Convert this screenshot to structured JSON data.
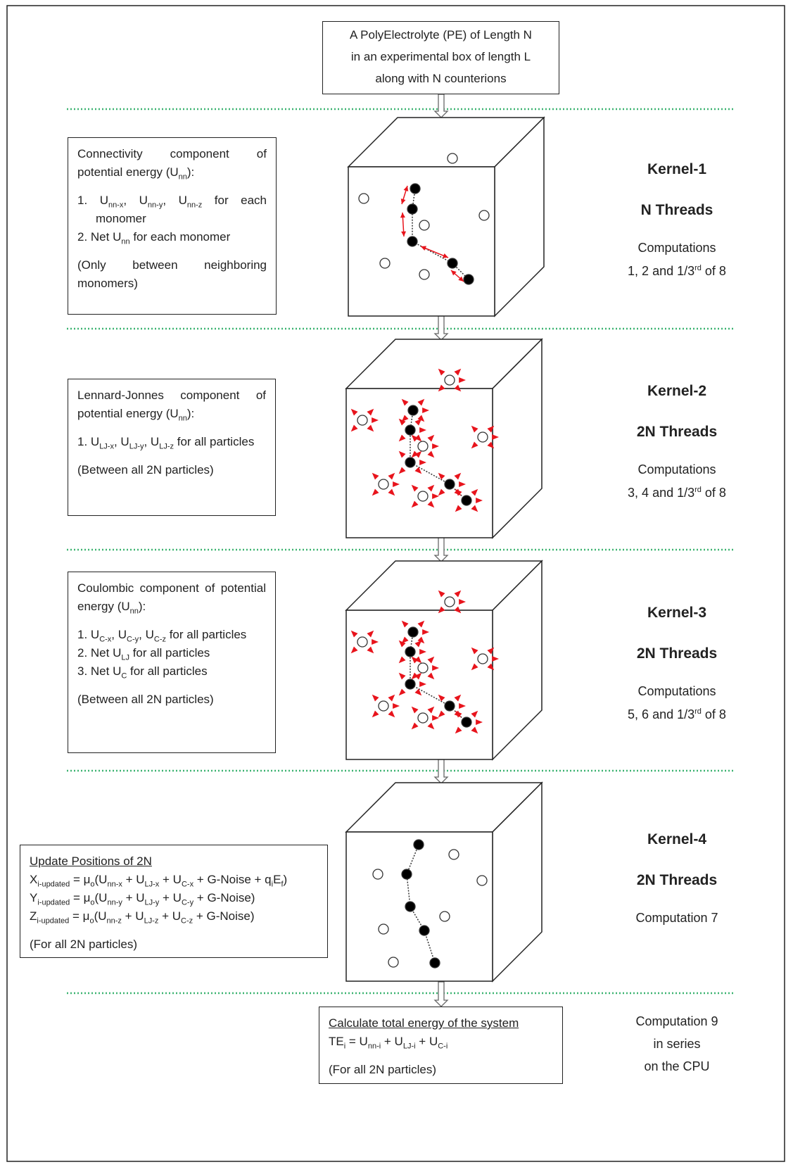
{
  "top_box": {
    "lines": [
      "A PolyElectrolyte (PE) of Length N",
      "in an experimental box of length L",
      "along with N counterions"
    ]
  },
  "kernels": [
    {
      "name": "Kernel-1",
      "threads": "N Threads",
      "computations": [
        [
          "Computations"
        ],
        [
          "1, 2 and 1/3",
          {
            "sup": "rd"
          },
          " of 8"
        ]
      ],
      "box": {
        "heading": [
          "Connectivity component of potential energy (U",
          {
            "sub": "nn"
          },
          "):"
        ],
        "list": [
          [
            "1. U",
            {
              "sub": "nn-x"
            },
            ", U",
            {
              "sub": "nn-y"
            },
            ", U",
            {
              "sub": "nn-z"
            },
            " for each monomer"
          ],
          [
            "2. Net U",
            {
              "sub": "nn"
            },
            " for each monomer"
          ]
        ],
        "note": [
          "(Only between neighboring monomers)"
        ]
      }
    },
    {
      "name": "Kernel-2",
      "threads": "2N Threads",
      "computations": [
        [
          "Computations"
        ],
        [
          "3, 4 and 1/3",
          {
            "sup": "rd"
          },
          " of 8"
        ]
      ],
      "box": {
        "heading": [
          "Lennard-Jonnes component of potential energy (U",
          {
            "sub": "nn"
          },
          "):"
        ],
        "list": [
          [
            "1. U",
            {
              "sub": "LJ-x"
            },
            ", U",
            {
              "sub": "LJ-y"
            },
            ", U",
            {
              "sub": "LJ-z"
            },
            " for all particles"
          ]
        ],
        "note": [
          "(Between all 2N particles)"
        ]
      }
    },
    {
      "name": "Kernel-3",
      "threads": "2N Threads",
      "computations": [
        [
          "Computations"
        ],
        [
          "5, 6 and 1/3",
          {
            "sup": "rd"
          },
          " of 8"
        ]
      ],
      "box": {
        "heading": [
          "Coulombic component of potential energy (U",
          {
            "sub": "nn"
          },
          "):"
        ],
        "list": [
          [
            "1. U",
            {
              "sub": "C-x"
            },
            ", U",
            {
              "sub": "C-y"
            },
            ", U",
            {
              "sub": "C-z"
            },
            " for all particles"
          ],
          [
            "2. Net U",
            {
              "sub": "LJ"
            },
            " for all particles"
          ],
          [
            "3. Net U",
            {
              "sub": "C"
            },
            " for all particles"
          ]
        ],
        "note": [
          "(Between all 2N particles)"
        ]
      }
    },
    {
      "name": "Kernel-4",
      "threads": "2N Threads",
      "computations": [
        [
          "Computation 7"
        ]
      ],
      "box": {
        "heading": [
          "Update Positions of 2N"
        ],
        "list": [
          [
            "X",
            {
              "sub": "i-updated"
            },
            " = μ",
            {
              "sub": "o"
            },
            "(U",
            {
              "sub": "nn-x"
            },
            " + U",
            {
              "sub": "LJ-x"
            },
            " + U",
            {
              "sub": "C-x"
            },
            " + G-Noise + q",
            {
              "sub": "i"
            },
            "E",
            {
              "sub": "f"
            },
            ")"
          ],
          [
            "Y",
            {
              "sub": "i-updated"
            },
            " = μ",
            {
              "sub": "o"
            },
            "(U",
            {
              "sub": "nn-y"
            },
            " + U",
            {
              "sub": "LJ-y"
            },
            " + U",
            {
              "sub": "C-y"
            },
            " + G-Noise)"
          ],
          [
            "Z",
            {
              "sub": "i-updated"
            },
            " = μ",
            {
              "sub": "o"
            },
            "(U",
            {
              "sub": "nn-z"
            },
            " + U",
            {
              "sub": "LJ-z"
            },
            " + U",
            {
              "sub": "C-z"
            },
            " + G-Noise)"
          ]
        ],
        "note": [
          "(For all 2N particles)"
        ]
      }
    }
  ],
  "final": {
    "box": {
      "heading": [
        "Calculate total energy of the system"
      ],
      "list": [
        [
          "TE",
          {
            "sub": "i"
          },
          " = U",
          {
            "sub": "nn-i"
          },
          " + U",
          {
            "sub": "LJ-i"
          },
          " + U",
          {
            "sub": "C-i"
          }
        ]
      ],
      "note": [
        "(For all 2N particles)"
      ]
    },
    "side": [
      "Computation 9",
      "in series",
      "on the CPU"
    ]
  }
}
